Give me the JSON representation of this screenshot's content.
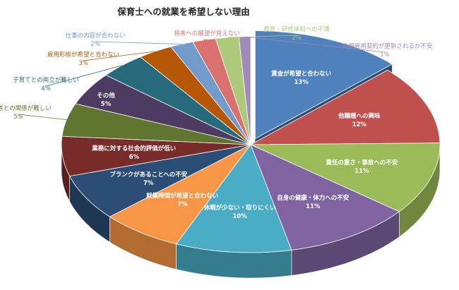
{
  "chart_data": {
    "type": "pie",
    "title": "保育士への就業を希望しない理由",
    "slices": [
      {
        "label": "賃金が希望と合わない",
        "pct_label": "13%",
        "value": 13,
        "color": "#4f81bd"
      },
      {
        "label": "他職種への興味",
        "pct_label": "12%",
        "value": 12,
        "color": "#c0504d"
      },
      {
        "label": "責任の重さ・事故への不安",
        "pct_label": "11%",
        "value": 11,
        "color": "#9bbb59"
      },
      {
        "label": "自身の健康・体力への不安",
        "pct_label": "11%",
        "value": 11,
        "color": "#8064a2"
      },
      {
        "label": "休暇が少ない・取りにくい",
        "pct_label": "10%",
        "value": 10,
        "color": "#4bacc6"
      },
      {
        "label": "就業時間が希望と合わない",
        "pct_label": "7%",
        "value": 7,
        "color": "#f79646"
      },
      {
        "label": "ブランクがあることへの不安",
        "pct_label": "7%",
        "value": 7,
        "color": "#2c4d75"
      },
      {
        "label": "業務に対する社会的評価が低い",
        "pct_label": "6%",
        "value": 6,
        "color": "#772c2a"
      },
      {
        "label": "保護者との関係が難しい",
        "pct_label": "5%",
        "value": 5,
        "color": "#5f7530"
      },
      {
        "label": "その他",
        "pct_label": "5%",
        "value": 5,
        "color": "#4d3b62"
      },
      {
        "label": "子育てとの両立が難しい",
        "pct_label": "4%",
        "value": 4,
        "color": "#276a7c"
      },
      {
        "label": "雇用形態が希望と合わない",
        "pct_label": "3%",
        "value": 3,
        "color": "#b65708"
      },
      {
        "label": "仕事の内容が合わない",
        "pct_label": "2%",
        "value": 2,
        "color": "#729aca"
      },
      {
        "label": "将来への展望が見えない",
        "pct_label": "2%",
        "value": 2,
        "color": "#d9726f"
      },
      {
        "label": "教育・研修体制への不満",
        "pct_label": "2%",
        "value": 2,
        "color": "#afc97a"
      },
      {
        "label": "有期雇用契約が更新されるか不安",
        "pct_label": "1%",
        "value": 1,
        "color": "#9f8ab8"
      }
    ],
    "exploded_slice": "賃金が希望と合わない",
    "style": "3d"
  }
}
